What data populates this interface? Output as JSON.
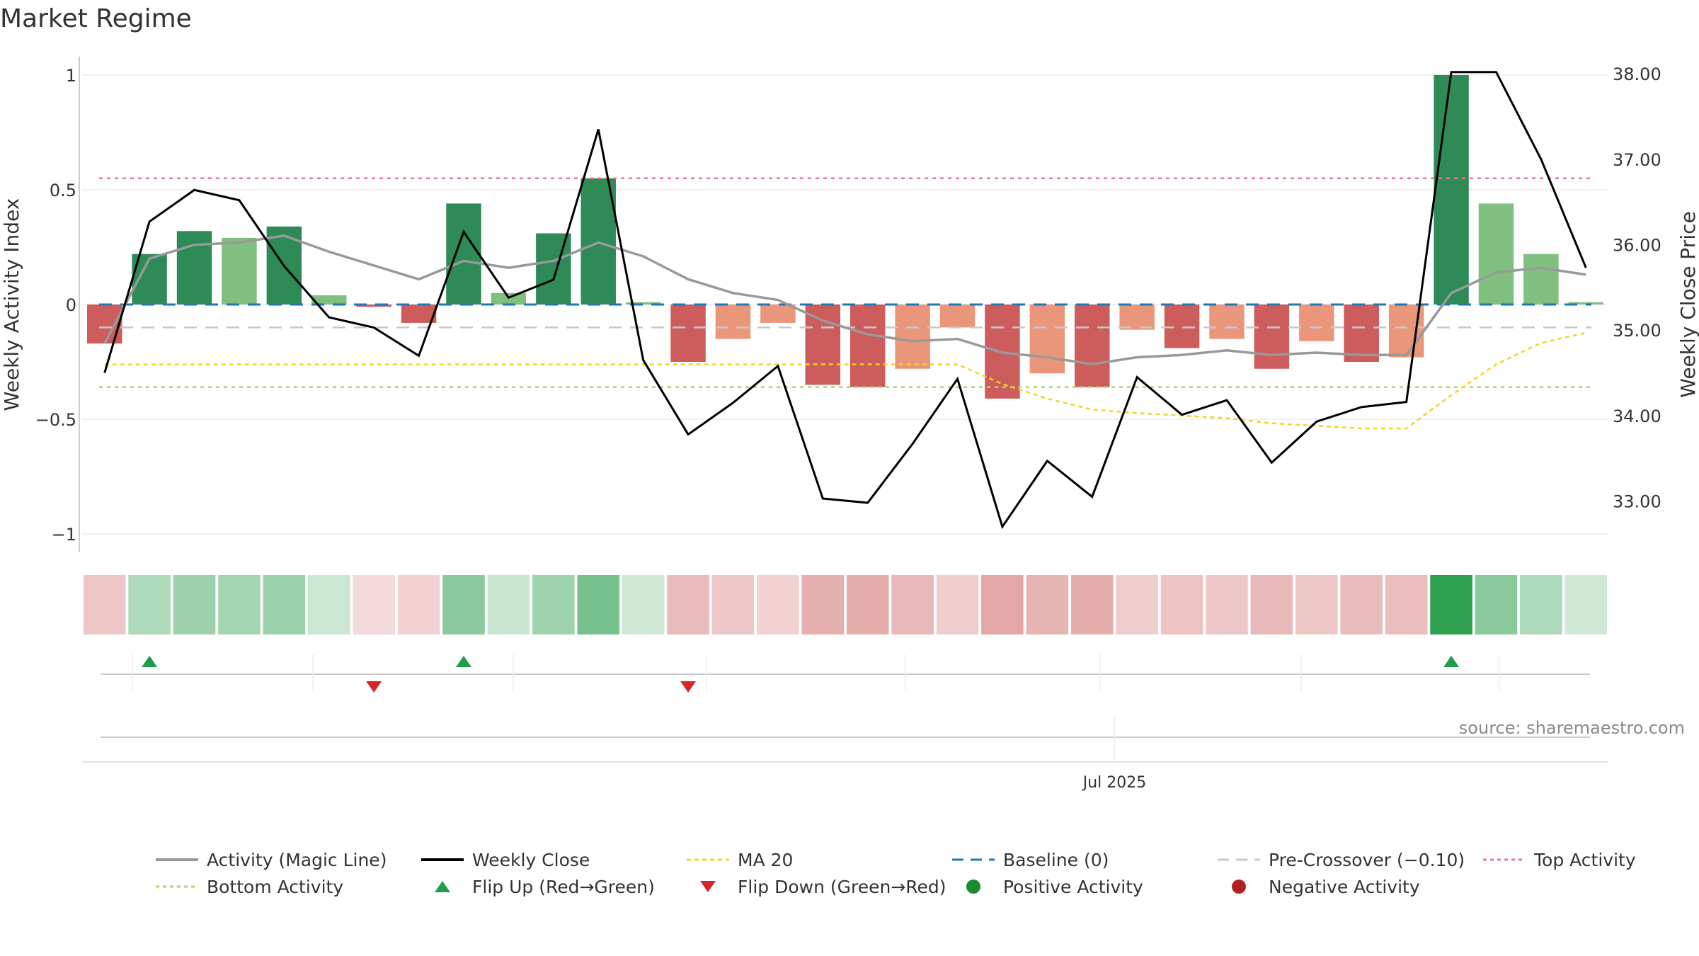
{
  "title": "Market Regime",
  "source": "source: sharemaestro.com",
  "colors": {
    "strong_green": "#2e8b57",
    "light_green": "#7fbf7f",
    "strong_red": "#cd5c5c",
    "light_red": "#e9967a",
    "close": "#000000",
    "activity_line": "#999999",
    "ma20": "#f5d327",
    "baseline": "#1f77b4",
    "precross": "#c8c8c8",
    "top": "#e87a8a",
    "bottom": "#a6d96a",
    "flip_up": "#1e9e4a",
    "flip_down": "#d62728",
    "positive": "#1e8a2e",
    "negative": "#b22222"
  },
  "chart_data": {
    "type": "bar",
    "left_axis": {
      "label": "Weekly Activity Index",
      "ticks": [
        "1",
        "0.5",
        "0",
        "−0.5",
        "−1"
      ],
      "tick_values": [
        1,
        0.5,
        0,
        -0.5,
        -1
      ],
      "range": [
        -1.08,
        1.08
      ]
    },
    "right_axis": {
      "label": "Weekly Close Price",
      "ticks": [
        "38.00",
        "37.00",
        "36.00",
        "35.00",
        "34.00",
        "33.00"
      ],
      "tick_values": [
        38,
        37,
        36,
        35,
        34,
        33
      ],
      "range": [
        32.4,
        38.2
      ]
    },
    "x_tick_label": "Jul 2025",
    "x_tick_index": 22.5,
    "activity": [
      -0.17,
      0.22,
      0.32,
      0.29,
      0.34,
      0.04,
      -0.01,
      -0.08,
      0.44,
      0.05,
      0.31,
      0.55,
      0.01,
      -0.25,
      -0.15,
      -0.08,
      -0.35,
      -0.36,
      -0.28,
      -0.1,
      -0.41,
      -0.3,
      -0.36,
      -0.11,
      -0.19,
      -0.15,
      -0.28,
      -0.16,
      -0.25,
      -0.23,
      1.0,
      0.44,
      0.22,
      0.01
    ],
    "bar_strength": [
      "strong",
      "strong",
      "strong",
      "light",
      "strong",
      "light",
      "strong",
      "strong",
      "strong",
      "light",
      "strong",
      "strong",
      "light",
      "strong",
      "light",
      "light",
      "strong",
      "strong",
      "light",
      "light",
      "strong",
      "light",
      "strong",
      "light",
      "strong",
      "light",
      "strong",
      "light",
      "strong",
      "light",
      "strong",
      "light",
      "light",
      "light"
    ],
    "magic_line": [
      -0.17,
      0.2,
      0.26,
      0.27,
      0.3,
      0.23,
      0.17,
      0.11,
      0.19,
      0.16,
      0.19,
      0.27,
      0.21,
      0.11,
      0.05,
      0.02,
      -0.07,
      -0.13,
      -0.16,
      -0.15,
      -0.21,
      -0.23,
      -0.26,
      -0.23,
      -0.22,
      -0.2,
      -0.22,
      -0.21,
      -0.22,
      -0.22,
      0.05,
      0.14,
      0.16,
      0.13
    ],
    "weekly_close": [
      34.5,
      36.27,
      36.64,
      36.52,
      35.75,
      35.15,
      35.03,
      34.7,
      36.15,
      35.38,
      35.59,
      37.35,
      34.65,
      33.78,
      34.15,
      34.58,
      33.03,
      32.98,
      33.67,
      34.43,
      32.7,
      33.47,
      33.05,
      34.45,
      34.01,
      34.18,
      33.45,
      33.93,
      34.1,
      34.16,
      38.02,
      38.02,
      37.0,
      35.73
    ],
    "ma20": [
      34.6,
      34.6,
      34.6,
      34.6,
      34.6,
      34.6,
      34.6,
      34.6,
      34.6,
      34.6,
      34.6,
      34.6,
      34.6,
      34.6,
      34.6,
      34.6,
      34.6,
      34.6,
      34.6,
      34.6,
      34.37,
      34.2,
      34.07,
      34.03,
      34.0,
      33.97,
      33.91,
      33.88,
      33.85,
      33.85,
      34.24,
      34.6,
      34.85,
      34.97
    ],
    "baseline": 0,
    "pre_crossover": -0.1,
    "top_activity": 0.55,
    "bottom_activity": -0.36,
    "flip_up_weeks": [
      1,
      8,
      30
    ],
    "flip_down_weeks": [
      6,
      13
    ],
    "legend": [
      "Activity (Magic Line)",
      "Weekly Close",
      "MA 20",
      "Baseline (0)",
      "Pre-Crossover (−0.10)",
      "Top Activity",
      "Bottom Activity",
      "Flip Up (Red→Green)",
      "Flip Down (Green→Red)",
      "Positive Activity",
      "Negative Activity"
    ]
  }
}
